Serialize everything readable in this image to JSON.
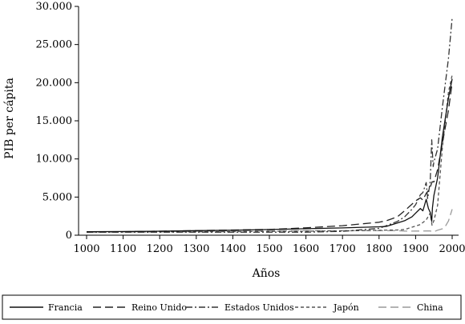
{
  "chart_data": {
    "type": "line",
    "title": "",
    "xlabel": "Años",
    "ylabel": "PIB per cápita",
    "xlim": [
      1000,
      2000
    ],
    "ylim": [
      0,
      30000
    ],
    "x_ticks": [
      1000,
      1100,
      1200,
      1300,
      1400,
      1500,
      1600,
      1700,
      1800,
      1900,
      2000
    ],
    "x_tick_labels": [
      "1000",
      "1100",
      "1200",
      "1300",
      "1400",
      "1500",
      "1600",
      "1700",
      "1800",
      "1900",
      "2000"
    ],
    "y_ticks": [
      0,
      5000,
      10000,
      15000,
      20000,
      25000,
      30000
    ],
    "y_tick_labels": [
      "0",
      "5.000",
      "10.000",
      "15.000",
      "20.000",
      "25.000",
      "30.000"
    ],
    "grid": false,
    "legend_position": "bottom",
    "series": [
      {
        "name": "Francia",
        "color": "#111111",
        "dash": "solid",
        "x": [
          1000,
          1100,
          1200,
          1300,
          1400,
          1500,
          1600,
          1700,
          1800,
          1820,
          1850,
          1870,
          1890,
          1900,
          1913,
          1920,
          1929,
          1935,
          1940,
          1944,
          1946,
          1950,
          1960,
          1973,
          1990,
          2000
        ],
        "y": [
          450,
          480,
          520,
          600,
          650,
          750,
          850,
          950,
          1100,
          1150,
          1600,
          1900,
          2400,
          2900,
          3500,
          3200,
          4700,
          3500,
          3000,
          1800,
          3600,
          5200,
          7500,
          12800,
          18000,
          20500
        ]
      },
      {
        "name": "Reino Unido",
        "color": "#222222",
        "dash": "long",
        "x": [
          1000,
          1100,
          1200,
          1300,
          1400,
          1500,
          1600,
          1700,
          1800,
          1820,
          1850,
          1870,
          1900,
          1913,
          1920,
          1929,
          1938,
          1945,
          1950,
          1960,
          1973,
          1990,
          2000
        ],
        "y": [
          420,
          460,
          520,
          600,
          680,
          760,
          970,
          1250,
          1700,
          1900,
          2400,
          3200,
          4500,
          4900,
          4600,
          5500,
          6000,
          7000,
          7000,
          8600,
          12000,
          16400,
          20000
        ]
      },
      {
        "name": "Estados Unidos",
        "color": "#333333",
        "dash": "dashdot",
        "x": [
          1000,
          1100,
          1200,
          1300,
          1400,
          1500,
          1600,
          1700,
          1800,
          1820,
          1850,
          1870,
          1890,
          1900,
          1913,
          1920,
          1929,
          1933,
          1940,
          1944,
          1948,
          1950,
          1960,
          1973,
          1990,
          2000
        ],
        "y": [
          400,
          400,
          400,
          400,
          400,
          400,
          400,
          500,
          900,
          1250,
          1800,
          2400,
          3400,
          4000,
          5300,
          5600,
          6900,
          4800,
          7000,
          12500,
          9000,
          9600,
          11300,
          16700,
          23200,
          28500
        ]
      },
      {
        "name": "Japón",
        "color": "#555555",
        "dash": "short",
        "x": [
          1000,
          1100,
          1200,
          1300,
          1400,
          1500,
          1600,
          1700,
          1800,
          1820,
          1850,
          1870,
          1900,
          1913,
          1929,
          1940,
          1945,
          1950,
          1960,
          1973,
          1990,
          2000
        ],
        "y": [
          420,
          430,
          440,
          450,
          460,
          500,
          520,
          570,
          640,
          670,
          680,
          740,
          1200,
          1400,
          2000,
          2900,
          1300,
          1900,
          3900,
          11400,
          18800,
          21000
        ]
      },
      {
        "name": "China",
        "color": "#9a9a9a",
        "dash": "long",
        "x": [
          1000,
          1100,
          1200,
          1300,
          1400,
          1500,
          1600,
          1700,
          1800,
          1820,
          1850,
          1870,
          1900,
          1913,
          1929,
          1940,
          1950,
          1960,
          1973,
          1980,
          1990,
          2000
        ],
        "y": [
          450,
          450,
          450,
          500,
          580,
          600,
          600,
          600,
          600,
          600,
          600,
          530,
          550,
          550,
          560,
          560,
          450,
          660,
          840,
          1060,
          1870,
          3400
        ]
      }
    ]
  }
}
